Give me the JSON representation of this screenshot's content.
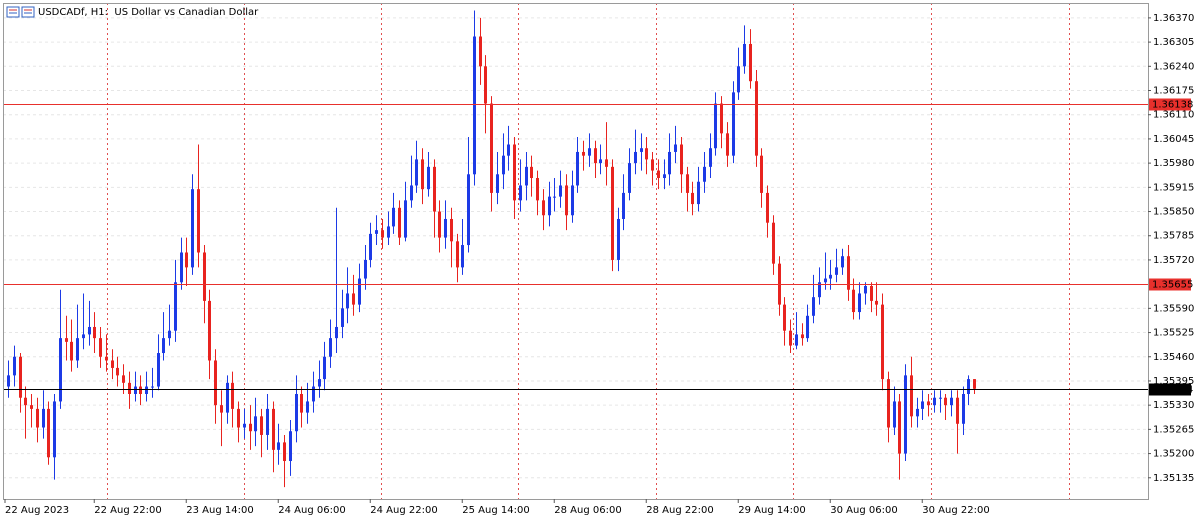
{
  "chart_data": {
    "type": "candlestick",
    "title": "USDCADf, H1:  US Dollar vs Canadian Dollar",
    "up_color": "#1c3ae6",
    "down_color": "#e8231f",
    "grid": true,
    "ylim": [
      1.35078,
      1.3641
    ],
    "yticks": [
      {
        "value": 1.3637,
        "label": "1.36370"
      },
      {
        "value": 1.36305,
        "label": "1.36305"
      },
      {
        "value": 1.3624,
        "label": "1.36240"
      },
      {
        "value": 1.36175,
        "label": "1.36175"
      },
      {
        "value": 1.3611,
        "label": "1.36110"
      },
      {
        "value": 1.36045,
        "label": "1.36045"
      },
      {
        "value": 1.3598,
        "label": "1.35980"
      },
      {
        "value": 1.35915,
        "label": "1.35915"
      },
      {
        "value": 1.3585,
        "label": "1.35850"
      },
      {
        "value": 1.35785,
        "label": "1.35785"
      },
      {
        "value": 1.3572,
        "label": "1.35720"
      },
      {
        "value": 1.3559,
        "label": "1.35590"
      },
      {
        "value": 1.35525,
        "label": "1.35525"
      },
      {
        "value": 1.3546,
        "label": "1.35460"
      },
      {
        "value": 1.35395,
        "label": "1.35395"
      },
      {
        "value": 1.3533,
        "label": "1.35330"
      },
      {
        "value": 1.35265,
        "label": "1.35265"
      },
      {
        "value": 1.352,
        "label": "1.35200"
      },
      {
        "value": 1.35135,
        "label": "1.35135"
      }
    ],
    "hlines": [
      {
        "value": 1.36138,
        "color": "#e8302c"
      },
      {
        "value": 1.35655,
        "color": "#e8302c"
      },
      {
        "value": 1.35374,
        "color": "#000000"
      }
    ],
    "categories": [
      "22 Aug 2023",
      null,
      null,
      null,
      null,
      null,
      null,
      null,
      null,
      null,
      null,
      null,
      null,
      null,
      null,
      "22 Aug 22:00",
      null,
      null,
      null,
      null,
      null,
      null,
      null,
      null,
      null,
      null,
      null,
      null,
      null,
      null,
      null,
      "23 Aug 14:00",
      null,
      null,
      null,
      null,
      null,
      null,
      null,
      null,
      null,
      null,
      null,
      null,
      null,
      null,
      null,
      "24 Aug 06:00",
      null,
      null,
      null,
      null,
      null,
      null,
      null,
      null,
      null,
      null,
      null,
      null,
      null,
      null,
      null,
      "24 Aug 22:00",
      null,
      null,
      null,
      null,
      null,
      null,
      null,
      null,
      null,
      null,
      null,
      null,
      null,
      null,
      null,
      "25 Aug 14:00",
      null,
      null,
      null,
      null,
      null,
      null,
      null,
      null,
      null,
      null,
      null,
      null,
      null,
      null,
      null,
      "28 Aug 06:00",
      null,
      null,
      null,
      null,
      null,
      null,
      null,
      null,
      null,
      null,
      null,
      null,
      null,
      null,
      null,
      "28 Aug 22:00",
      null,
      null,
      null,
      null,
      null,
      null,
      null,
      null,
      null,
      null,
      null,
      null,
      null,
      null,
      null,
      "29 Aug 14:00",
      null,
      null,
      null,
      null,
      null,
      null,
      null,
      null,
      null,
      null,
      null,
      null,
      null,
      null,
      null,
      "30 Aug 06:00",
      null,
      null,
      null,
      null,
      null,
      null,
      null,
      null,
      null,
      null,
      null,
      null,
      null,
      null,
      null,
      "30 Aug 22:00",
      null,
      null,
      null,
      null,
      null,
      null,
      null,
      null,
      null
    ],
    "open": [
      1.3538,
      1.3541,
      1.3546,
      1.3535,
      1.3533,
      1.3532,
      1.3527,
      1.3532,
      1.3519,
      1.3534,
      1.3551,
      1.355,
      1.3545,
      1.3551,
      1.3552,
      1.3554,
      1.3551,
      1.3546,
      1.3545,
      1.3543,
      1.3541,
      1.3539,
      1.3536,
      1.3538,
      1.3536,
      1.3538,
      1.3538,
      1.3547,
      1.3551,
      1.3553,
      1.3566,
      1.3574,
      1.357,
      1.3591,
      1.3574,
      1.3561,
      1.3545,
      1.3533,
      1.3531,
      1.3539,
      1.3532,
      1.3527,
      1.3528,
      1.3526,
      1.353,
      1.3525,
      1.3532,
      1.3521,
      1.3523,
      1.3518,
      1.3526,
      1.3536,
      1.3531,
      1.3534,
      1.3538,
      1.354,
      1.3546,
      1.3551,
      1.3554,
      1.3559,
      1.3563,
      1.356,
      1.3567,
      1.3572,
      1.3579,
      1.358,
      1.3578,
      1.3581,
      1.3586,
      1.3578,
      1.3588,
      1.3592,
      1.3599,
      1.3591,
      1.3597,
      1.3585,
      1.3578,
      1.3583,
      1.3577,
      1.357,
      1.3576,
      1.3595,
      1.3632,
      1.3624,
      1.3614,
      1.359,
      1.3595,
      1.36,
      1.3603,
      1.3588,
      1.3592,
      1.3597,
      1.3594,
      1.3588,
      1.3584,
      1.3589,
      1.3589,
      1.3592,
      1.3584,
      1.3592,
      1.3601,
      1.36,
      1.3602,
      1.3598,
      1.3599,
      1.3597,
      1.3572,
      1.3583,
      1.359,
      1.3598,
      1.3601,
      1.3602,
      1.3599,
      1.3596,
      1.3594,
      1.3595,
      1.3601,
      1.3603,
      1.3595,
      1.359,
      1.3587,
      1.3593,
      1.3597,
      1.3602,
      1.3614,
      1.3606,
      1.36,
      1.3617,
      1.3624,
      1.363,
      1.362,
      1.36,
      1.359,
      1.3582,
      1.3571,
      1.356,
      1.3553,
      1.3549,
      1.3552,
      1.3551,
      1.3557,
      1.3562,
      1.3566,
      1.3567,
      1.3568,
      1.357,
      1.3573,
      1.3564,
      1.3558,
      1.3563,
      1.3565,
      1.3561,
      1.356,
      1.354,
      1.3527,
      1.3534,
      1.352,
      1.3541,
      1.353,
      1.3532,
      1.3534,
      1.3533,
      1.3535,
      1.3535,
      1.3533,
      1.3535,
      1.3528,
      1.3536,
      1.354
    ],
    "high": [
      1.3545,
      1.3549,
      1.3547,
      1.3538,
      1.3536,
      1.3535,
      1.3537,
      1.3534,
      1.3536,
      1.3564,
      1.3557,
      1.3556,
      1.356,
      1.3563,
      1.3561,
      1.3558,
      1.3554,
      1.3552,
      1.3548,
      1.3546,
      1.3544,
      1.3542,
      1.3542,
      1.3541,
      1.3542,
      1.3543,
      1.3552,
      1.3558,
      1.356,
      1.3572,
      1.3578,
      1.3578,
      1.3595,
      1.3603,
      1.3576,
      1.3564,
      1.3548,
      1.3537,
      1.3541,
      1.3542,
      1.3534,
      1.3532,
      1.3533,
      1.3535,
      1.3532,
      1.3536,
      1.3534,
      1.3528,
      1.3525,
      1.3529,
      1.3541,
      1.3538,
      1.3539,
      1.3542,
      1.3545,
      1.355,
      1.3556,
      1.3586,
      1.3564,
      1.357,
      1.3568,
      1.3571,
      1.3576,
      1.3582,
      1.3584,
      1.3583,
      1.3585,
      1.359,
      1.3588,
      1.3593,
      1.36,
      1.3604,
      1.3602,
      1.3601,
      1.3599,
      1.3588,
      1.3588,
      1.3586,
      1.3579,
      1.3583,
      1.3605,
      1.3639,
      1.3637,
      1.3627,
      1.3616,
      1.3601,
      1.3606,
      1.3608,
      1.3605,
      1.3599,
      1.3601,
      1.36,
      1.3596,
      1.3591,
      1.3593,
      1.3594,
      1.3596,
      1.3595,
      1.3596,
      1.3605,
      1.3604,
      1.3606,
      1.3604,
      1.3603,
      1.3609,
      1.3599,
      1.3586,
      1.3595,
      1.3602,
      1.3607,
      1.3606,
      1.3605,
      1.3601,
      1.3599,
      1.3599,
      1.3606,
      1.3608,
      1.3605,
      1.3597,
      1.3593,
      1.3597,
      1.3601,
      1.3606,
      1.3617,
      1.3616,
      1.3609,
      1.362,
      1.3629,
      1.3635,
      1.3634,
      1.3623,
      1.3602,
      1.3592,
      1.3584,
      1.3573,
      1.3562,
      1.3556,
      1.3558,
      1.3555,
      1.356,
      1.3568,
      1.357,
      1.3574,
      1.3572,
      1.3575,
      1.3575,
      1.3576,
      1.3567,
      1.3566,
      1.3566,
      1.3566,
      1.3566,
      1.3563,
      1.3542,
      1.3538,
      1.3536,
      1.3544,
      1.3546,
      1.3535,
      1.3537,
      1.3536,
      1.3537,
      1.3537,
      1.3536,
      1.3537,
      1.3537,
      1.3538,
      1.3541,
      1.354
    ],
    "low": [
      1.3535,
      1.3538,
      1.3531,
      1.3524,
      1.3527,
      1.3523,
      1.3524,
      1.3517,
      1.3513,
      1.3532,
      1.3545,
      1.3542,
      1.3543,
      1.3548,
      1.3549,
      1.3547,
      1.3543,
      1.3542,
      1.354,
      1.3538,
      1.3536,
      1.3532,
      1.3534,
      1.3533,
      1.3534,
      1.3535,
      1.3537,
      1.3545,
      1.3549,
      1.355,
      1.3564,
      1.3565,
      1.3568,
      1.357,
      1.3555,
      1.354,
      1.3528,
      1.3522,
      1.3528,
      1.3527,
      1.3523,
      1.3524,
      1.3521,
      1.3522,
      1.3519,
      1.3521,
      1.3515,
      1.3517,
      1.3511,
      1.3514,
      1.3523,
      1.3527,
      1.3528,
      1.3531,
      1.3535,
      1.3537,
      1.3543,
      1.3547,
      1.3551,
      1.3555,
      1.3557,
      1.3558,
      1.3564,
      1.357,
      1.3576,
      1.3575,
      1.3576,
      1.3579,
      1.3576,
      1.3577,
      1.3586,
      1.359,
      1.3587,
      1.3589,
      1.3578,
      1.3574,
      1.3575,
      1.357,
      1.3566,
      1.3568,
      1.3574,
      1.3592,
      1.3619,
      1.3606,
      1.3585,
      1.3587,
      1.3591,
      1.3596,
      1.3583,
      1.3585,
      1.3588,
      1.3589,
      1.3584,
      1.358,
      1.3581,
      1.3585,
      1.3586,
      1.358,
      1.3582,
      1.359,
      1.3596,
      1.3597,
      1.3594,
      1.3595,
      1.3592,
      1.3569,
      1.3569,
      1.358,
      1.3588,
      1.3595,
      1.3596,
      1.3595,
      1.3592,
      1.3591,
      1.3591,
      1.3592,
      1.3598,
      1.359,
      1.3585,
      1.3584,
      1.3585,
      1.359,
      1.3594,
      1.36,
      1.3602,
      1.3597,
      1.3598,
      1.3615,
      1.3622,
      1.3618,
      1.3597,
      1.3586,
      1.3578,
      1.3568,
      1.3557,
      1.3549,
      1.3547,
      1.3548,
      1.3549,
      1.355,
      1.3555,
      1.356,
      1.3564,
      1.3564,
      1.3566,
      1.3568,
      1.3561,
      1.3556,
      1.3556,
      1.356,
      1.3558,
      1.3557,
      1.3537,
      1.3523,
      1.3525,
      1.3513,
      1.3518,
      1.3527,
      1.3527,
      1.3529,
      1.353,
      1.3531,
      1.3531,
      1.3529,
      1.353,
      1.352,
      1.3525,
      1.3533,
      1.3536
    ],
    "close": [
      1.3541,
      1.3546,
      1.3535,
      1.3533,
      1.3532,
      1.3527,
      1.3532,
      1.3519,
      1.3534,
      1.3551,
      1.355,
      1.3545,
      1.3551,
      1.3552,
      1.3554,
      1.3551,
      1.3546,
      1.3545,
      1.3543,
      1.3541,
      1.3539,
      1.3536,
      1.3538,
      1.3536,
      1.3538,
      1.3538,
      1.3547,
      1.3551,
      1.3553,
      1.3566,
      1.3574,
      1.357,
      1.3591,
      1.3574,
      1.3561,
      1.3545,
      1.3533,
      1.3531,
      1.3539,
      1.3532,
      1.3527,
      1.3528,
      1.3526,
      1.353,
      1.3525,
      1.3532,
      1.3521,
      1.3523,
      1.3518,
      1.3526,
      1.3536,
      1.3531,
      1.3534,
      1.3538,
      1.354,
      1.3546,
      1.3551,
      1.3554,
      1.3559,
      1.3563,
      1.356,
      1.3567,
      1.3572,
      1.3579,
      1.358,
      1.3578,
      1.3581,
      1.3586,
      1.3578,
      1.3588,
      1.3592,
      1.3599,
      1.3591,
      1.3597,
      1.3585,
      1.3578,
      1.3583,
      1.3577,
      1.357,
      1.3576,
      1.3595,
      1.3632,
      1.3624,
      1.3614,
      1.359,
      1.3595,
      1.36,
      1.3603,
      1.3588,
      1.3592,
      1.3597,
      1.3594,
      1.3588,
      1.3584,
      1.3589,
      1.3589,
      1.3592,
      1.3584,
      1.3592,
      1.3601,
      1.36,
      1.3602,
      1.3598,
      1.3599,
      1.3597,
      1.3572,
      1.3583,
      1.359,
      1.3598,
      1.3601,
      1.3602,
      1.3599,
      1.3596,
      1.3594,
      1.3595,
      1.3601,
      1.3603,
      1.3595,
      1.359,
      1.3587,
      1.3593,
      1.3597,
      1.3602,
      1.3614,
      1.3606,
      1.36,
      1.3617,
      1.3624,
      1.363,
      1.362,
      1.36,
      1.359,
      1.3582,
      1.3571,
      1.356,
      1.3553,
      1.3549,
      1.3552,
      1.3551,
      1.3557,
      1.3562,
      1.3566,
      1.3567,
      1.3568,
      1.357,
      1.3573,
      1.3564,
      1.3558,
      1.3563,
      1.3565,
      1.3561,
      1.356,
      1.354,
      1.3527,
      1.3534,
      1.352,
      1.3541,
      1.353,
      1.3532,
      1.3534,
      1.3533,
      1.3535,
      1.3535,
      1.3533,
      1.3535,
      1.3528,
      1.3536,
      1.354,
      1.35374
    ]
  }
}
